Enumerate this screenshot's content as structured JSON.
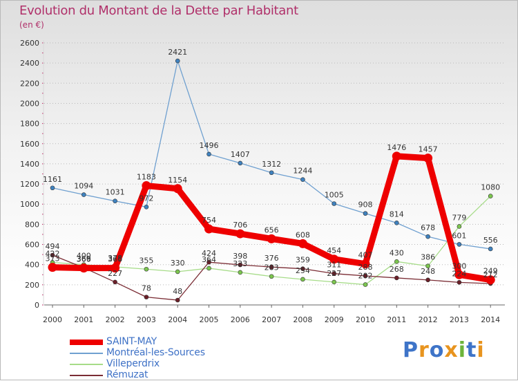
{
  "title": "Evolution du Montant de la Dette par Habitant",
  "unit": "(en €)",
  "logo": {
    "text": "Proxiti",
    "letter_colors": [
      "#3e74c8",
      "#e8941e",
      "#3e74c8",
      "#e8941e",
      "#6cb43a",
      "#3e74c8",
      "#e8941e"
    ]
  },
  "chart_data": {
    "type": "line",
    "x": [
      "2000",
      "2001",
      "2002",
      "2003",
      "2004",
      "2005",
      "2006",
      "2007",
      "2008",
      "2009",
      "2010",
      "2011",
      "2012",
      "2013",
      "2014"
    ],
    "ylim": [
      0,
      2600
    ],
    "yticks": [
      "0",
      "200",
      "400",
      "600",
      "800",
      "1000",
      "1200",
      "1400",
      "1600",
      "1800",
      "2000",
      "2200",
      "2400",
      "2600"
    ],
    "series": [
      {
        "name": "Montréal-les-Sources",
        "color": "#6fa0d0",
        "marker": "#3f82bf",
        "values": [
          1161,
          1094,
          1031,
          972,
          2421,
          1496,
          1407,
          1312,
          1244,
          1005,
          908,
          814,
          678,
          601,
          556
        ],
        "labels": [
          "1161",
          "1094",
          "1031",
          "972",
          "2421",
          "1496",
          "1407",
          "1312",
          "1244",
          "1005",
          "908",
          "814",
          "678",
          "601",
          "556"
        ]
      },
      {
        "name": "Villeperdrix",
        "color": "#a6dc88",
        "marker": "#7cc64f",
        "values": [
          422,
          400,
          378,
          355,
          330,
          364,
          323,
          283,
          254,
          227,
          202,
          430,
          386,
          779,
          1080
        ],
        "labels": [
          "422",
          "400",
          "378",
          "355",
          "330",
          "364",
          "323",
          "283",
          "254",
          "227",
          "202",
          "430",
          "386",
          "779",
          "1080"
        ]
      },
      {
        "name": "Rémuzat",
        "color": "#7a2c34",
        "marker": "#6b1f28",
        "values": [
          494,
          369,
          227,
          78,
          48,
          424,
          398,
          376,
          359,
          311,
          288,
          268,
          248,
          224,
          212
        ],
        "labels": [
          "494",
          "369",
          "227",
          "78",
          "48",
          "424",
          "398",
          "376",
          "359",
          "311",
          "288",
          "268",
          "248",
          "224",
          "212"
        ]
      },
      {
        "name": "SAINT-MAY",
        "color": "#ee0000",
        "marker": "#ee0000",
        "values": [
          373,
          366,
          366,
          1183,
          1154,
          754,
          706,
          656,
          608,
          454,
          407,
          1476,
          1457,
          300,
          249
        ],
        "labels": [
          "373",
          "366",
          "366",
          "1183",
          "1154",
          "754",
          "706",
          "656",
          "608",
          "454",
          "407",
          "1476",
          "1457",
          "300",
          "249"
        ]
      }
    ],
    "legend": [
      {
        "name": "SAINT-MAY",
        "color": "#ee0000"
      },
      {
        "name": "Montréal-les-Sources",
        "color": "#6fa0d0"
      },
      {
        "name": "Villeperdrix",
        "color": "#a6dc88"
      },
      {
        "name": "Rémuzat",
        "color": "#7a2c34"
      }
    ]
  }
}
